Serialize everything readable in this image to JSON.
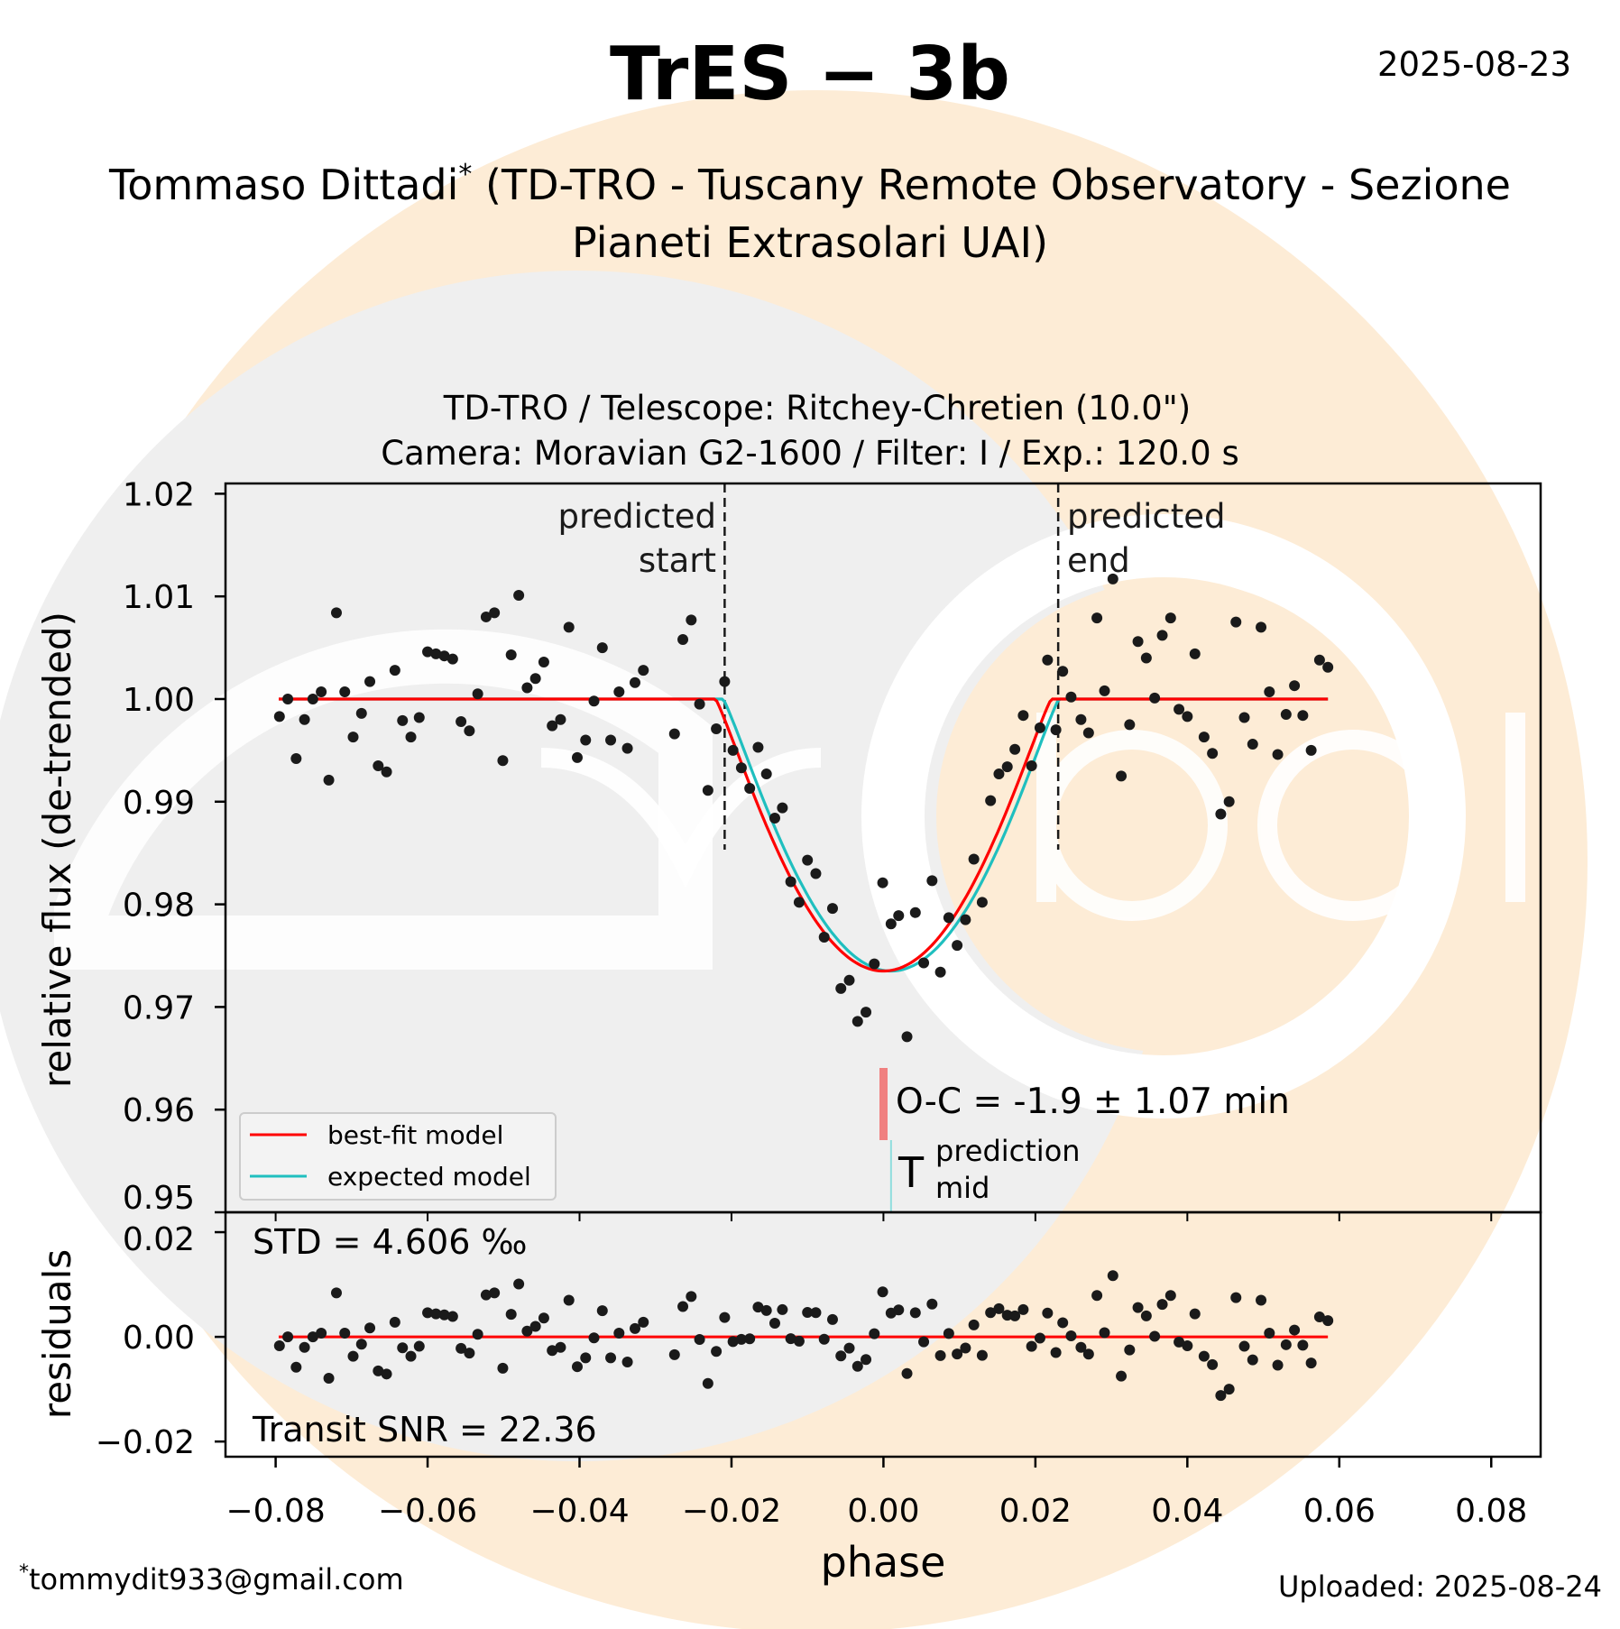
{
  "header": {
    "title": "TrES − 3b",
    "date": "2025-08-23",
    "observer_name": "Tommaso Dittadi",
    "observer_mark": "*",
    "observatory_line1": "(TD-TRO - Tuscany Remote Observatory - Sezione",
    "observatory_line2": "Pianeti Extrasolari UAI)"
  },
  "footer": {
    "email_mark": "*",
    "email": "tommydit933@gmail.com",
    "uploaded": "Uploaded: 2025-08-24"
  },
  "logo": {
    "text": "exoclock"
  },
  "colors": {
    "best_fit": "#ff0000",
    "expected": "#1fbfbf",
    "points": "#1a1a1a",
    "oc_bar": "#f08080",
    "prediction_line": "#8fdede",
    "peach": "#fdecd6",
    "grey": "#efefef"
  },
  "chart_data": {
    "type": "scatter",
    "title_line1": "TD-TRO / Telescope: Ritchey-Chretien (10.0\")",
    "title_line2": "Camera: Moravian G2-1600 / Filter: I / Exp.: 120.0 s",
    "xlabel": "phase",
    "ylabel": "relative flux (de-trended)",
    "residual_ylabel": "residuals",
    "xlim": [
      -0.0866,
      0.0865
    ],
    "ylim": [
      0.95,
      1.021
    ],
    "residual_ylim": [
      -0.0229,
      0.0238
    ],
    "xticks": [
      {
        "v": -0.08,
        "label": "−0.08"
      },
      {
        "v": -0.06,
        "label": "−0.06"
      },
      {
        "v": -0.04,
        "label": "−0.04"
      },
      {
        "v": -0.02,
        "label": "−0.02"
      },
      {
        "v": 0.0,
        "label": "0.00"
      },
      {
        "v": 0.02,
        "label": "0.02"
      },
      {
        "v": 0.04,
        "label": "0.04"
      },
      {
        "v": 0.06,
        "label": "0.06"
      },
      {
        "v": 0.08,
        "label": "0.08"
      }
    ],
    "yticks": [
      {
        "v": 0.95,
        "label": "0.95"
      },
      {
        "v": 0.96,
        "label": "0.96"
      },
      {
        "v": 0.97,
        "label": "0.97"
      },
      {
        "v": 0.98,
        "label": "0.98"
      },
      {
        "v": 0.99,
        "label": "0.99"
      },
      {
        "v": 1.0,
        "label": "1.00"
      },
      {
        "v": 1.01,
        "label": "1.01"
      },
      {
        "v": 1.02,
        "label": "1.02"
      }
    ],
    "residual_yticks": [
      {
        "v": -0.02,
        "label": "−0.02"
      },
      {
        "v": 0.0,
        "label": "0.00"
      },
      {
        "v": 0.02,
        "label": "0.02"
      }
    ],
    "predicted_start": -0.0209,
    "predicted_end": 0.023,
    "predicted_start_label1": "predicted",
    "predicted_start_label2": "start",
    "predicted_end_label1": "predicted",
    "predicted_end_label2": "end",
    "prediction_mid": 0.001,
    "oc_text": "O-C = -1.9 ± 1.07 min",
    "tmid_T": "T",
    "tmid_sup": "prediction",
    "tmid_sub": "mid",
    "std_text": "STD = 4.606 ‰",
    "snr_text": "Transit SNR = 22.36",
    "legend": [
      {
        "label": "best-fit model",
        "series": "best_fit"
      },
      {
        "label": "expected model",
        "series": "expected"
      }
    ],
    "models": {
      "best_fit": {
        "center": 0.0,
        "half_duration": 0.0221,
        "depth": 0.0265,
        "shape_power": 1.15
      },
      "expected": {
        "center": 0.001,
        "half_duration": 0.0221,
        "depth": 0.0265,
        "shape_power": 1.15
      },
      "x_range": [
        -0.0796,
        0.0585
      ]
    },
    "points": [
      [
        -0.0795,
        0.9983
      ],
      [
        -0.0784,
        1.0
      ],
      [
        -0.0773,
        0.9942
      ],
      [
        -0.0762,
        0.998
      ],
      [
        -0.0751,
        1.0
      ],
      [
        -0.074,
        1.0007
      ],
      [
        -0.073,
        0.9921
      ],
      [
        -0.072,
        1.0084
      ],
      [
        -0.0709,
        1.0007
      ],
      [
        -0.0698,
        0.9963
      ],
      [
        -0.0687,
        0.9986
      ],
      [
        -0.0676,
        1.0017
      ],
      [
        -0.0665,
        0.9935
      ],
      [
        -0.0654,
        0.9929
      ],
      [
        -0.0643,
        1.0028
      ],
      [
        -0.0633,
        0.9979
      ],
      [
        -0.0622,
        0.9963
      ],
      [
        -0.0611,
        0.9982
      ],
      [
        -0.06,
        1.0046
      ],
      [
        -0.0589,
        1.0044
      ],
      [
        -0.0578,
        1.0042
      ],
      [
        -0.0567,
        1.0039
      ],
      [
        -0.0556,
        0.9978
      ],
      [
        -0.0545,
        0.9969
      ],
      [
        -0.0534,
        1.0005
      ],
      [
        -0.0523,
        1.008
      ],
      [
        -0.0512,
        1.0084
      ],
      [
        -0.0501,
        0.994
      ],
      [
        -0.049,
        1.0043
      ],
      [
        -0.048,
        1.0101
      ],
      [
        -0.0469,
        1.0011
      ],
      [
        -0.0458,
        1.002
      ],
      [
        -0.0447,
        1.0036
      ],
      [
        -0.0436,
        0.9974
      ],
      [
        -0.0425,
        0.998
      ],
      [
        -0.0414,
        1.007
      ],
      [
        -0.0403,
        0.9943
      ],
      [
        -0.0392,
        0.996
      ],
      [
        -0.0381,
        0.9998
      ],
      [
        -0.037,
        1.005
      ],
      [
        -0.0359,
        0.996
      ],
      [
        -0.0348,
        1.0007
      ],
      [
        -0.0337,
        0.9952
      ],
      [
        -0.0327,
        1.0016
      ],
      [
        -0.0316,
        1.0028
      ],
      [
        -0.0275,
        0.9966
      ],
      [
        -0.0264,
        1.0058
      ],
      [
        -0.0253,
        1.0077
      ],
      [
        -0.0242,
        0.9995
      ],
      [
        -0.0231,
        0.9911
      ],
      [
        -0.022,
        0.9971
      ],
      [
        -0.0209,
        1.0017
      ],
      [
        -0.0198,
        0.995
      ],
      [
        -0.0187,
        0.9933
      ],
      [
        -0.0176,
        0.9913
      ],
      [
        -0.0165,
        0.9953
      ],
      [
        -0.0154,
        0.9927
      ],
      [
        -0.0143,
        0.9884
      ],
      [
        -0.0133,
        0.9894
      ],
      [
        -0.0122,
        0.9822
      ],
      [
        -0.0111,
        0.9802
      ],
      [
        -0.01,
        0.9843
      ],
      [
        -0.0089,
        0.983
      ],
      [
        -0.0078,
        0.9768
      ],
      [
        -0.0067,
        0.9796
      ],
      [
        -0.0056,
        0.9718
      ],
      [
        -0.0045,
        0.9726
      ],
      [
        -0.0034,
        0.9686
      ],
      [
        -0.0023,
        0.9695
      ],
      [
        -0.0012,
        0.9742
      ],
      [
        -0.0001,
        0.9821
      ],
      [
        0.001,
        0.9781
      ],
      [
        0.002,
        0.9789
      ],
      [
        0.0031,
        0.9671
      ],
      [
        0.0042,
        0.9792
      ],
      [
        0.0053,
        0.9743
      ],
      [
        0.0064,
        0.9823
      ],
      [
        0.0075,
        0.9734
      ],
      [
        0.0086,
        0.9787
      ],
      [
        0.0097,
        0.976
      ],
      [
        0.0108,
        0.9785
      ],
      [
        0.0119,
        0.9844
      ],
      [
        0.013,
        0.9802
      ],
      [
        0.0141,
        0.9901
      ],
      [
        0.0152,
        0.9927
      ],
      [
        0.0163,
        0.9934
      ],
      [
        0.0173,
        0.9951
      ],
      [
        0.0184,
        0.9984
      ],
      [
        0.0195,
        0.9935
      ],
      [
        0.0206,
        0.9972
      ],
      [
        0.0216,
        1.0038
      ],
      [
        0.0227,
        0.997
      ],
      [
        0.0236,
        1.0027
      ],
      [
        0.0247,
        1.0002
      ],
      [
        0.026,
        0.998
      ],
      [
        0.027,
        0.9967
      ],
      [
        0.0281,
        1.0079
      ],
      [
        0.0291,
        1.0008
      ],
      [
        0.0302,
        1.0117
      ],
      [
        0.0313,
        0.9925
      ],
      [
        0.0324,
        0.9975
      ],
      [
        0.0335,
        1.0056
      ],
      [
        0.0346,
        1.004
      ],
      [
        0.0357,
        1.0001
      ],
      [
        0.0367,
        1.0062
      ],
      [
        0.0378,
        1.0079
      ],
      [
        0.0389,
        0.999
      ],
      [
        0.04,
        0.9983
      ],
      [
        0.041,
        1.0044
      ],
      [
        0.0422,
        0.9963
      ],
      [
        0.0433,
        0.9947
      ],
      [
        0.0444,
        0.9888
      ],
      [
        0.0455,
        0.99
      ],
      [
        0.0464,
        1.0075
      ],
      [
        0.0475,
        0.9982
      ],
      [
        0.0486,
        0.9956
      ],
      [
        0.0497,
        1.007
      ],
      [
        0.0508,
        1.0007
      ],
      [
        0.0519,
        0.9946
      ],
      [
        0.053,
        0.9985
      ],
      [
        0.0541,
        1.0013
      ],
      [
        0.0552,
        0.9984
      ],
      [
        0.0563,
        0.995
      ],
      [
        0.0574,
        1.0038
      ],
      [
        0.0585,
        1.0031
      ]
    ]
  }
}
